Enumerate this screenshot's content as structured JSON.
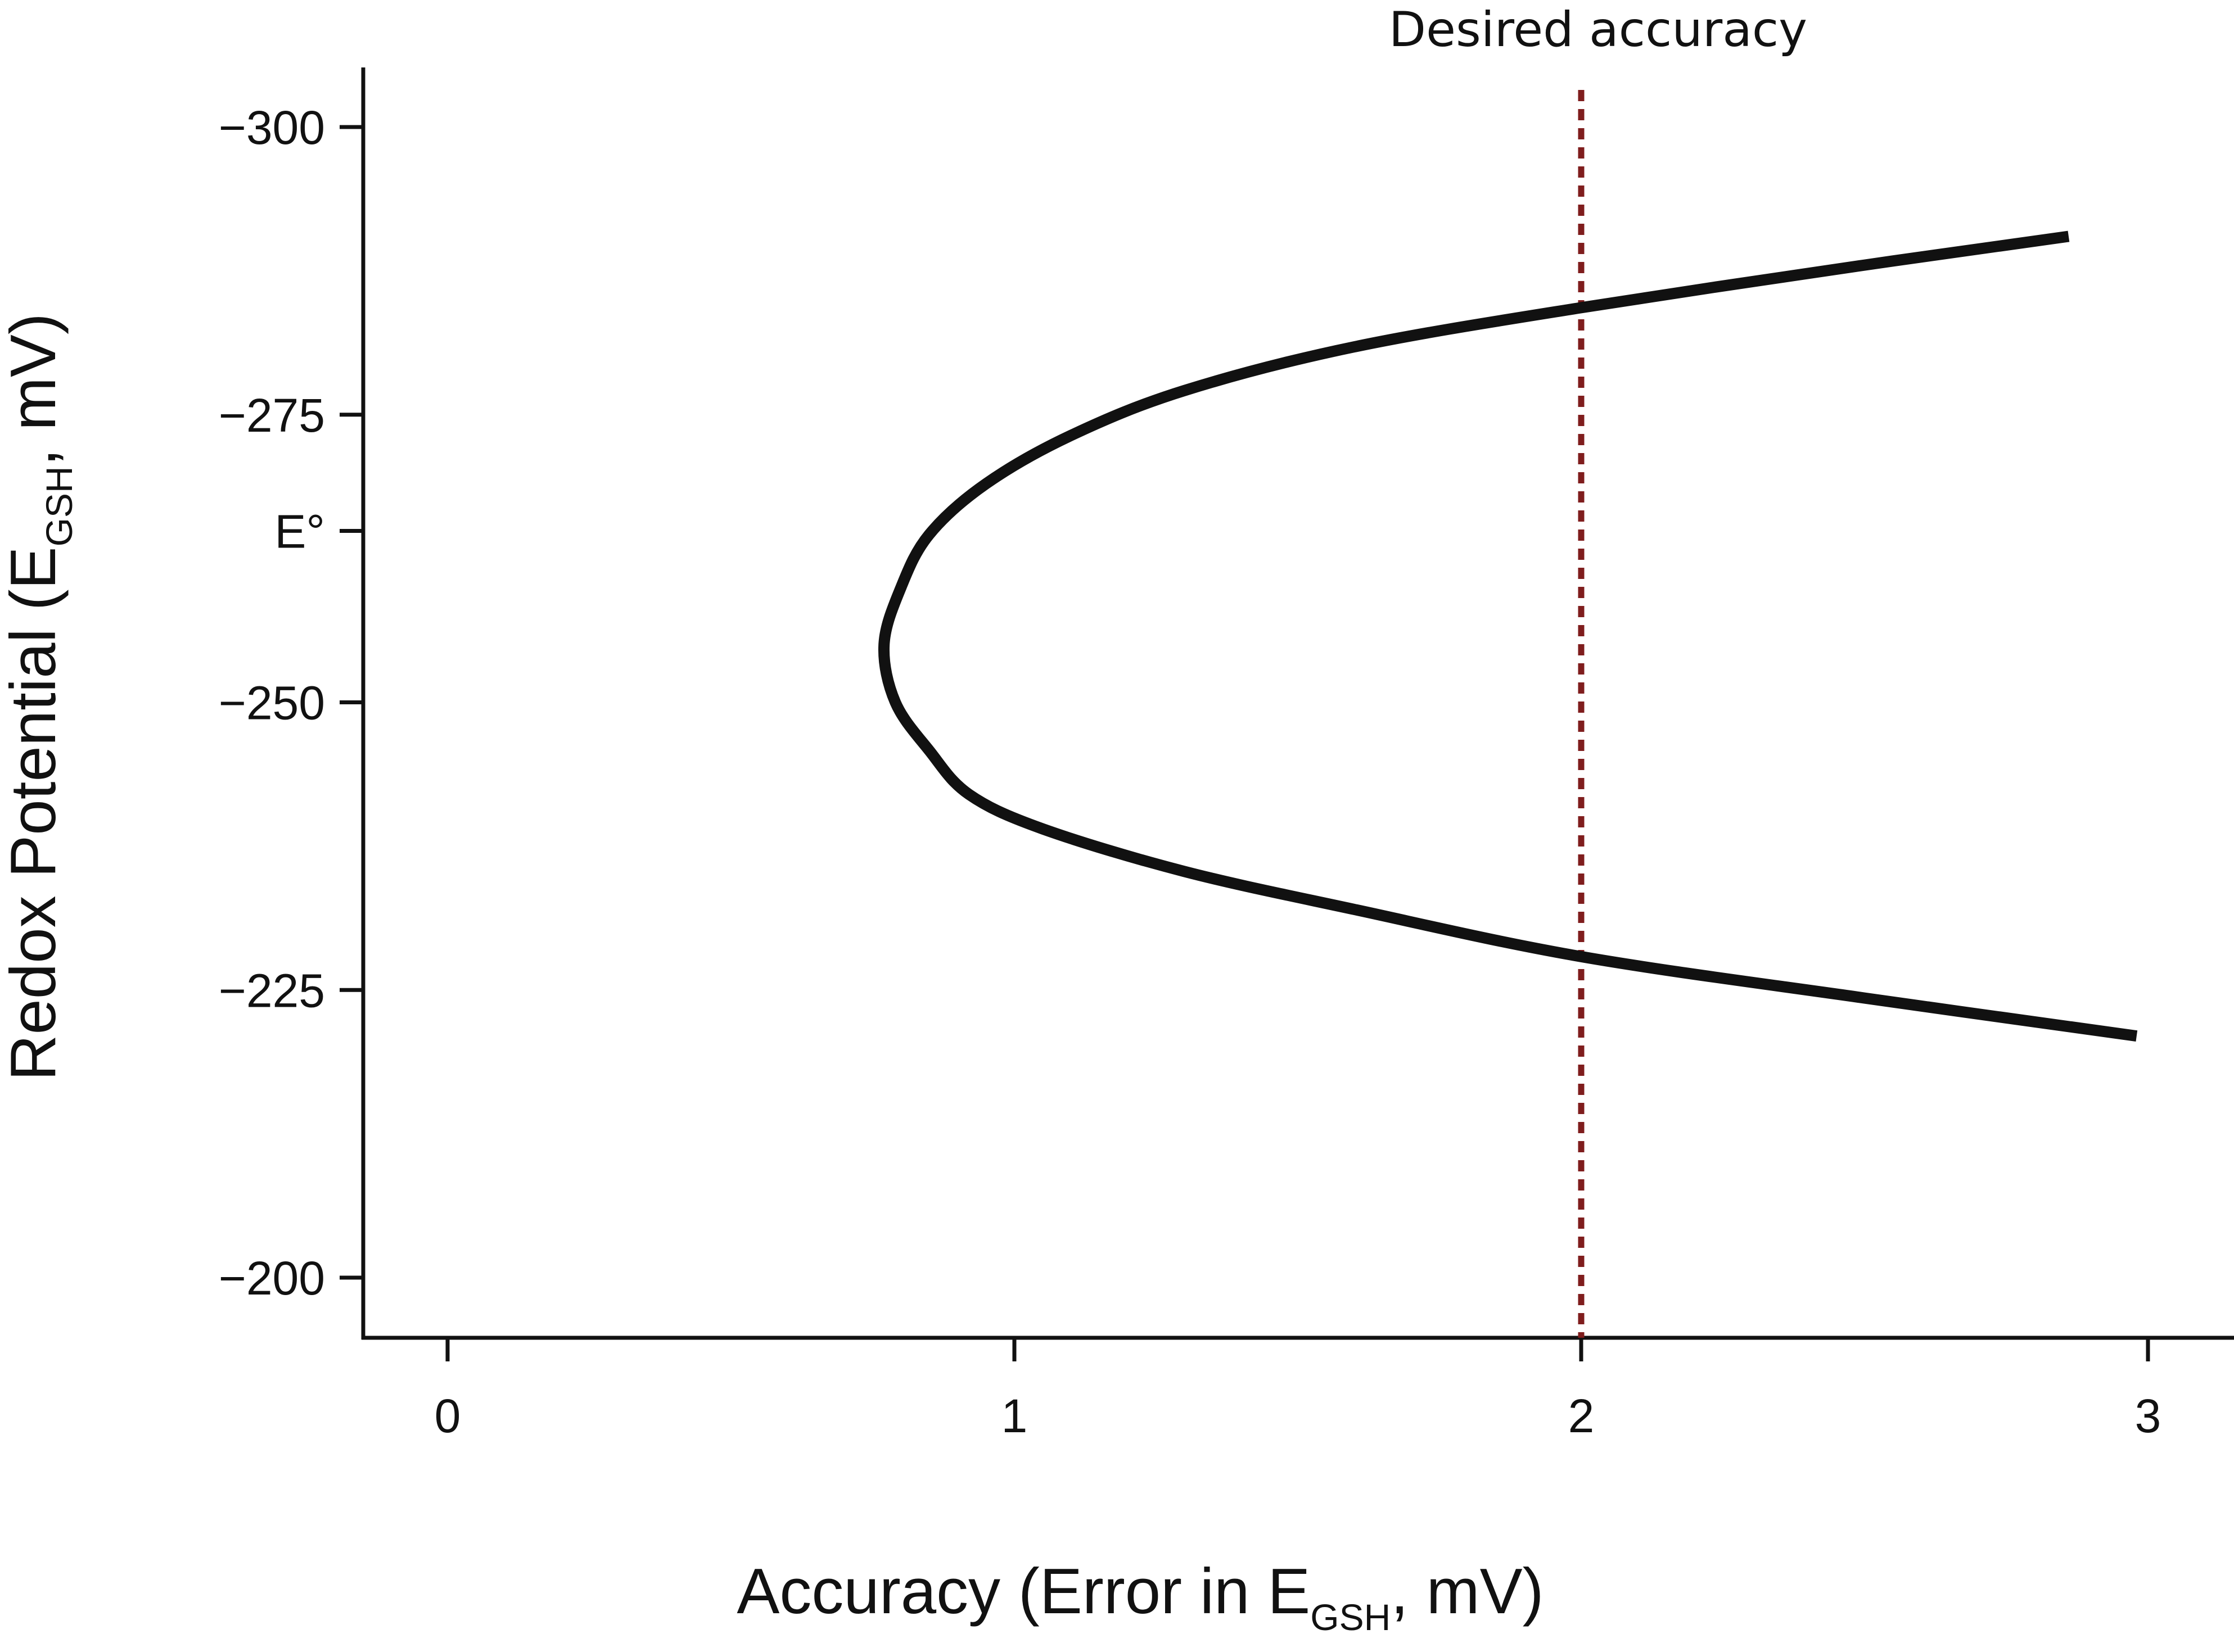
{
  "chart_data": {
    "type": "line",
    "xlabel": {
      "prefix": "Accuracy (Error in E",
      "sub": "GSH",
      "suffix": ", mV)"
    },
    "ylabel": {
      "prefix": "Redox Potential (E",
      "sub": "GSH",
      "suffix": ", mV)"
    },
    "xlim": [
      -0.15,
      3.15
    ],
    "ylim": [
      -195,
      -305
    ],
    "x_ticks": [
      0,
      1,
      2,
      3
    ],
    "x_tick_labels": [
      "0",
      "1",
      "2",
      "3"
    ],
    "y_ticks": [
      -300,
      -275,
      -264.9,
      -250,
      -225,
      -200
    ],
    "y_tick_labels": [
      "−300",
      "−275",
      "E°",
      "−250",
      "−225",
      "−200"
    ],
    "grid": false,
    "series": [
      {
        "color": "#111111",
        "points": [
          [
            2.86,
            -290.5
          ],
          [
            2.5,
            -288.0
          ],
          [
            2.0,
            -284.3
          ],
          [
            1.6,
            -280.9
          ],
          [
            1.3,
            -277.1
          ],
          [
            1.1,
            -273.2
          ],
          [
            0.95,
            -269.0
          ],
          [
            0.85,
            -264.6
          ],
          [
            0.8,
            -260.0
          ],
          [
            0.77,
            -255.0
          ],
          [
            0.79,
            -250.0
          ],
          [
            0.85,
            -245.8
          ],
          [
            0.92,
            -242.0
          ],
          [
            1.05,
            -239.0
          ],
          [
            1.3,
            -235.3
          ],
          [
            1.6,
            -232.0
          ],
          [
            2.0,
            -227.9
          ],
          [
            2.5,
            -224.3
          ],
          [
            2.98,
            -221.0
          ]
        ]
      }
    ],
    "reference_line": {
      "x": 2,
      "label": "Desired accuracy",
      "color": "#7f1d1d"
    }
  }
}
